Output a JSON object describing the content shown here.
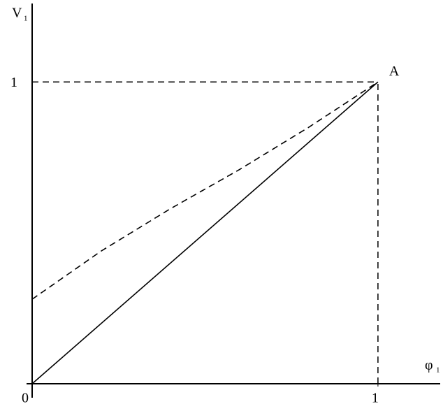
{
  "chart_data": {
    "type": "line",
    "x_label": "φ",
    "x_label_sub": "1",
    "y_label": "V",
    "y_label_sub": "1",
    "xlim": [
      0,
      1.18
    ],
    "ylim": [
      0,
      1.26
    ],
    "xticks": [
      0,
      1
    ],
    "yticks": [
      1
    ],
    "series": [
      {
        "color": "#000000",
        "dash": false,
        "x": [
          0,
          1
        ],
        "values": [
          0,
          1
        ]
      },
      {
        "color": "#000000",
        "dash": true,
        "x": [
          0,
          0.2,
          0.4,
          0.6,
          0.8,
          1
        ],
        "values": [
          0.28,
          0.44,
          0.58,
          0.71,
          0.85,
          1
        ]
      }
    ],
    "annotations": [
      {
        "text": "A",
        "x": 1,
        "y": 1
      }
    ]
  }
}
